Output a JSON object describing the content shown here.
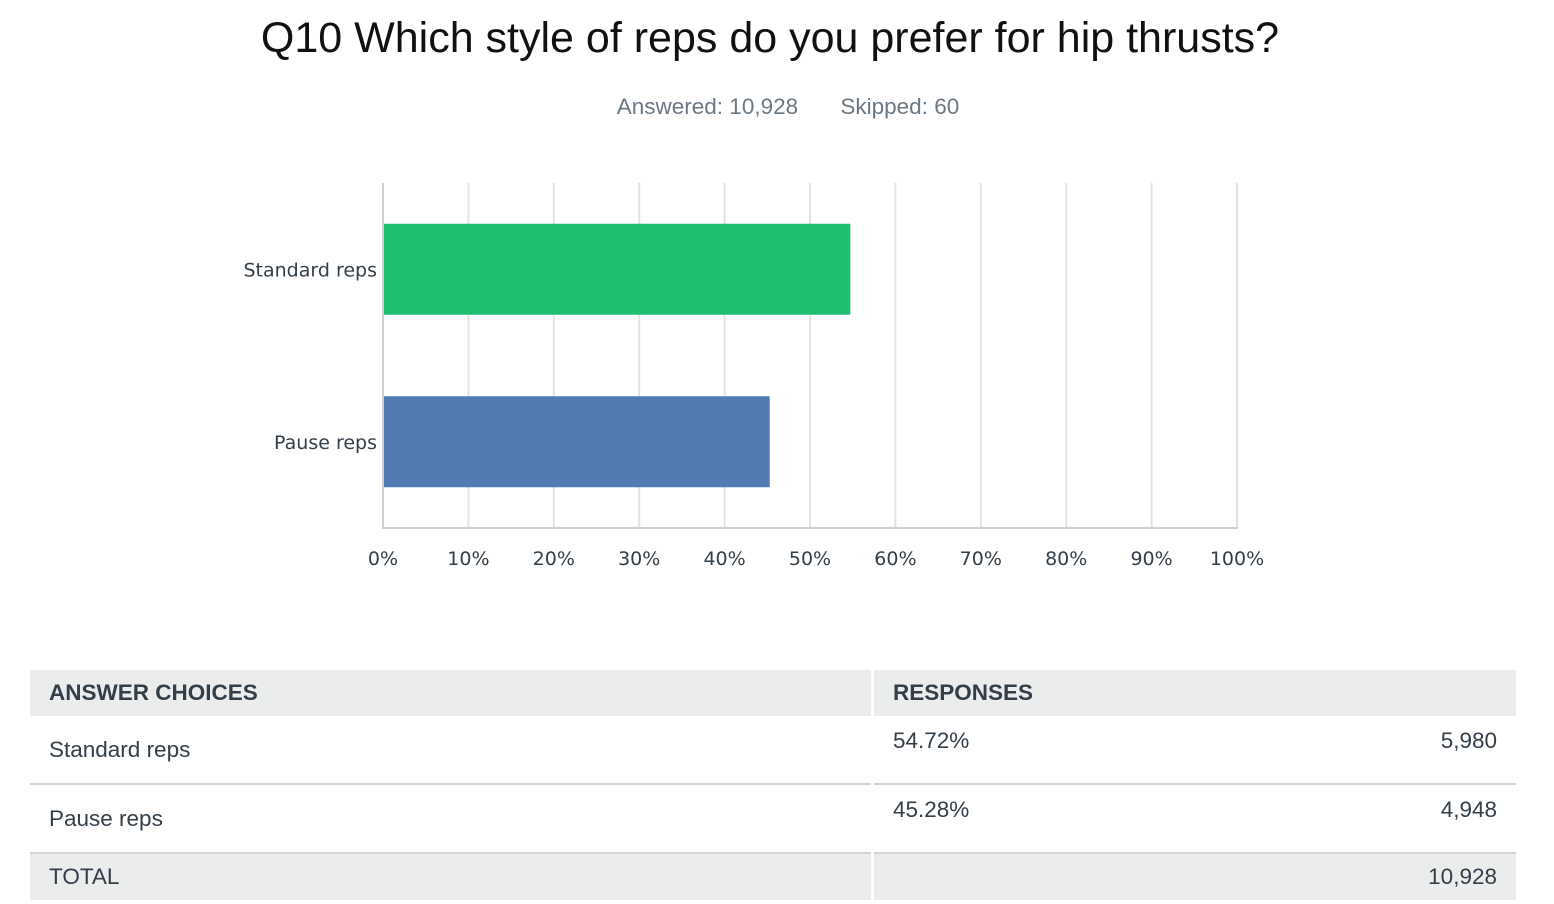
{
  "title": "Q10 Which style of reps do you prefer for hip thrusts?",
  "stats": {
    "answered": "Answered: 10,928",
    "skipped": "Skipped: 60"
  },
  "chart_data": {
    "type": "bar",
    "orientation": "horizontal",
    "categories": [
      "Standard reps",
      "Pause reps"
    ],
    "values": [
      54.72,
      45.28
    ],
    "colors": [
      "#1fbf72",
      "#527bb3"
    ],
    "xlim": [
      0,
      100
    ],
    "xticks": [
      "0%",
      "10%",
      "20%",
      "30%",
      "40%",
      "50%",
      "60%",
      "70%",
      "80%",
      "90%",
      "100%"
    ],
    "grid": true,
    "legend": "none"
  },
  "table": {
    "headers": {
      "choice": "ANSWER CHOICES",
      "responses": "RESPONSES"
    },
    "rows": [
      {
        "choice": "Standard reps",
        "percent": "54.72%",
        "count": "5,980"
      },
      {
        "choice": "Pause reps",
        "percent": "45.28%",
        "count": "4,948"
      }
    ],
    "total": {
      "label": "TOTAL",
      "count": "10,928"
    }
  }
}
